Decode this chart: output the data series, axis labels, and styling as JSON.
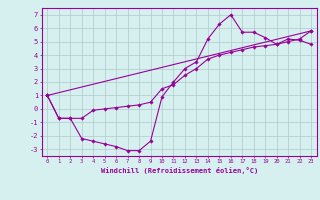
{
  "xlabel": "Windchill (Refroidissement éolien,°C)",
  "background_color": "#d6f0f0",
  "grid_color": "#b0c8c8",
  "line_color": "#990099",
  "xlim": [
    -0.5,
    23.5
  ],
  "ylim": [
    -3.5,
    7.5
  ],
  "yticks": [
    -3,
    -2,
    -1,
    0,
    1,
    2,
    3,
    4,
    5,
    6,
    7
  ],
  "xticks": [
    0,
    1,
    2,
    3,
    4,
    5,
    6,
    7,
    8,
    9,
    10,
    11,
    12,
    13,
    14,
    15,
    16,
    17,
    18,
    19,
    20,
    21,
    22,
    23
  ],
  "curve1_x": [
    0,
    1,
    2,
    3,
    4,
    5,
    6,
    7,
    8,
    9,
    10,
    11,
    12,
    13,
    14,
    15,
    16,
    17,
    18,
    19,
    20,
    21,
    22,
    23
  ],
  "curve1_y": [
    1.0,
    -0.7,
    -0.7,
    -2.2,
    -2.4,
    -2.6,
    -2.8,
    -3.1,
    -3.1,
    -2.4,
    0.9,
    2.0,
    3.0,
    3.5,
    5.2,
    6.3,
    7.0,
    5.7,
    5.7,
    5.3,
    4.8,
    5.2,
    5.1,
    4.8
  ],
  "curve2_x": [
    0,
    1,
    2,
    3,
    4,
    5,
    6,
    7,
    8,
    9,
    10,
    11,
    12,
    13,
    14,
    15,
    16,
    17,
    18,
    19,
    20,
    21,
    22,
    23
  ],
  "curve2_y": [
    1.0,
    -0.7,
    -0.7,
    -0.7,
    -0.1,
    0.0,
    0.1,
    0.2,
    0.3,
    0.5,
    1.5,
    1.8,
    2.5,
    3.0,
    3.7,
    4.0,
    4.2,
    4.4,
    4.6,
    4.7,
    4.8,
    5.0,
    5.2,
    5.8
  ],
  "curve3_x": [
    0,
    23
  ],
  "curve3_y": [
    1.0,
    5.8
  ]
}
